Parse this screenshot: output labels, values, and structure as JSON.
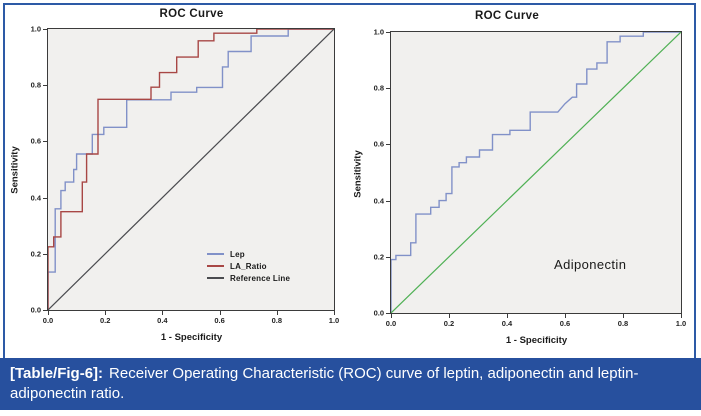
{
  "theme": {
    "frame_border": "#2d5aa6",
    "caption_bg": "#27509e",
    "caption_text_color": "#ffffff",
    "figure_bg": "#ffffff",
    "axis_color": "#3b3b3b",
    "tick_text_color": "#222222"
  },
  "caption": {
    "tag": "[Table/Fig-6]:",
    "text": "Receiver Operating Characteristic (ROC) curve of leptin, adiponectin and leptin-adiponectin ratio."
  },
  "chart_data": [
    {
      "type": "line",
      "subtype": "roc-step-curve",
      "title": "ROC Curve",
      "xlabel": "1 - Specificity",
      "ylabel": "Sensitivity",
      "xlim": [
        0,
        1
      ],
      "ylim": [
        0,
        1
      ],
      "xticks": [
        "0.0",
        "0.2",
        "0.4",
        "0.6",
        "0.8",
        "1.0"
      ],
      "yticks": [
        "0.0",
        "0.2",
        "0.4",
        "0.6",
        "0.8",
        "1.0"
      ],
      "grid": false,
      "plot_bg": "#f1f0ee",
      "legend": {
        "position": "inside-lower-right",
        "entries": [
          {
            "name": "Lep",
            "color": "#8191c8"
          },
          {
            "name": "LA_Ratio",
            "color": "#a84745"
          },
          {
            "name": "Reference Line",
            "color": "#4a4b4f"
          }
        ]
      },
      "series": [
        {
          "name": "Lep",
          "color": "#8191c8",
          "width": 1.4,
          "points": [
            [
              0,
              0
            ],
            [
              0,
              0.135
            ],
            [
              0.025,
              0.135
            ],
            [
              0.025,
              0.36
            ],
            [
              0.045,
              0.36
            ],
            [
              0.045,
              0.425
            ],
            [
              0.06,
              0.425
            ],
            [
              0.06,
              0.455
            ],
            [
              0.09,
              0.455
            ],
            [
              0.09,
              0.5
            ],
            [
              0.1,
              0.5
            ],
            [
              0.1,
              0.555
            ],
            [
              0.155,
              0.555
            ],
            [
              0.155,
              0.625
            ],
            [
              0.195,
              0.625
            ],
            [
              0.195,
              0.65
            ],
            [
              0.275,
              0.65
            ],
            [
              0.275,
              0.748
            ],
            [
              0.43,
              0.748
            ],
            [
              0.43,
              0.775
            ],
            [
              0.52,
              0.775
            ],
            [
              0.52,
              0.792
            ],
            [
              0.61,
              0.792
            ],
            [
              0.61,
              0.865
            ],
            [
              0.63,
              0.865
            ],
            [
              0.63,
              0.92
            ],
            [
              0.71,
              0.92
            ],
            [
              0.71,
              0.975
            ],
            [
              0.84,
              0.975
            ],
            [
              0.84,
              1
            ],
            [
              1,
              1
            ]
          ]
        },
        {
          "name": "LA_Ratio",
          "color": "#a84745",
          "width": 1.4,
          "points": [
            [
              0,
              0
            ],
            [
              0,
              0.225
            ],
            [
              0.02,
              0.225
            ],
            [
              0.02,
              0.26
            ],
            [
              0.045,
              0.26
            ],
            [
              0.045,
              0.35
            ],
            [
              0.12,
              0.35
            ],
            [
              0.12,
              0.455
            ],
            [
              0.135,
              0.455
            ],
            [
              0.135,
              0.555
            ],
            [
              0.175,
              0.555
            ],
            [
              0.175,
              0.75
            ],
            [
              0.36,
              0.75
            ],
            [
              0.36,
              0.793
            ],
            [
              0.39,
              0.793
            ],
            [
              0.39,
              0.845
            ],
            [
              0.45,
              0.845
            ],
            [
              0.45,
              0.9
            ],
            [
              0.525,
              0.9
            ],
            [
              0.525,
              0.958
            ],
            [
              0.58,
              0.958
            ],
            [
              0.58,
              0.985
            ],
            [
              0.73,
              0.985
            ],
            [
              0.73,
              1
            ],
            [
              1,
              1
            ]
          ]
        },
        {
          "name": "Reference Line",
          "color": "#4a4b4f",
          "width": 1.2,
          "points": [
            [
              0,
              0
            ],
            [
              1,
              1
            ]
          ]
        }
      ]
    },
    {
      "type": "line",
      "subtype": "roc-step-curve",
      "title": "ROC Curve",
      "xlabel": "1 - Specificity",
      "ylabel": "Sensitivity",
      "xlim": [
        0,
        1
      ],
      "ylim": [
        0,
        1
      ],
      "xticks": [
        "0.0",
        "0.2",
        "0.4",
        "0.6",
        "0.8",
        "1.0"
      ],
      "yticks": [
        "0.0",
        "0.2",
        "0.4",
        "0.6",
        "0.8",
        "1.0"
      ],
      "grid": false,
      "plot_bg": "#f1f0ee",
      "annotation": "Adiponectin",
      "series": [
        {
          "name": "Adiponectin",
          "color": "#8191c8",
          "width": 1.4,
          "points": [
            [
              0,
              0
            ],
            [
              0,
              0.19
            ],
            [
              0.017,
              0.19
            ],
            [
              0.017,
              0.205
            ],
            [
              0.068,
              0.205
            ],
            [
              0.068,
              0.25
            ],
            [
              0.086,
              0.25
            ],
            [
              0.086,
              0.352
            ],
            [
              0.137,
              0.352
            ],
            [
              0.137,
              0.376
            ],
            [
              0.166,
              0.376
            ],
            [
              0.166,
              0.4
            ],
            [
              0.19,
              0.4
            ],
            [
              0.19,
              0.425
            ],
            [
              0.21,
              0.425
            ],
            [
              0.21,
              0.52
            ],
            [
              0.235,
              0.52
            ],
            [
              0.235,
              0.535
            ],
            [
              0.26,
              0.535
            ],
            [
              0.26,
              0.555
            ],
            [
              0.305,
              0.555
            ],
            [
              0.305,
              0.58
            ],
            [
              0.35,
              0.58
            ],
            [
              0.35,
              0.635
            ],
            [
              0.41,
              0.635
            ],
            [
              0.41,
              0.65
            ],
            [
              0.48,
              0.65
            ],
            [
              0.48,
              0.715
            ],
            [
              0.575,
              0.715
            ],
            [
              0.6,
              0.745
            ],
            [
              0.625,
              0.768
            ],
            [
              0.64,
              0.768
            ],
            [
              0.64,
              0.815
            ],
            [
              0.675,
              0.815
            ],
            [
              0.675,
              0.868
            ],
            [
              0.71,
              0.868
            ],
            [
              0.71,
              0.89
            ],
            [
              0.745,
              0.89
            ],
            [
              0.745,
              0.965
            ],
            [
              0.79,
              0.965
            ],
            [
              0.79,
              0.985
            ],
            [
              0.87,
              0.985
            ],
            [
              0.87,
              1
            ],
            [
              1,
              1
            ]
          ]
        },
        {
          "name": "Reference Line",
          "color": "#4fb054",
          "width": 1.2,
          "points": [
            [
              0,
              0
            ],
            [
              1,
              1
            ]
          ]
        }
      ]
    }
  ]
}
